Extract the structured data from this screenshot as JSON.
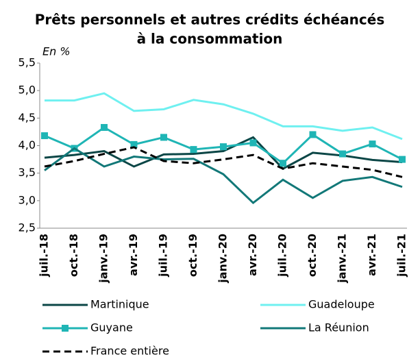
{
  "chart_data": {
    "type": "line",
    "title": [
      "Prêts personnels et autres crédits échéancés",
      "à la consommation"
    ],
    "y_label": "En %",
    "categories": [
      "juil.-18",
      "oct.-18",
      "janv.-19",
      "avr.-19",
      "juil.-19",
      "oct.-19",
      "janv.-20",
      "avr.-20",
      "juil.-20",
      "oct.-20",
      "janv.-21",
      "avr.-21",
      "juil.-21"
    ],
    "series": [
      {
        "name": "Martinique",
        "color": "#0b4646",
        "dash": false,
        "marker": null,
        "values": [
          3.78,
          3.83,
          3.9,
          3.62,
          3.84,
          3.85,
          3.9,
          4.15,
          3.58,
          3.87,
          3.82,
          3.74,
          3.7
        ]
      },
      {
        "name": "Guadeloupe",
        "color": "#6ff0f0",
        "dash": false,
        "marker": null,
        "values": [
          4.82,
          4.82,
          4.95,
          4.63,
          4.66,
          4.83,
          4.75,
          4.58,
          4.35,
          4.35,
          4.27,
          4.33,
          4.12
        ]
      },
      {
        "name": "Guyane",
        "color": "#1fb5b5",
        "dash": false,
        "marker": "square",
        "values": [
          4.18,
          3.95,
          4.33,
          4.02,
          4.15,
          3.93,
          3.98,
          4.05,
          3.68,
          4.2,
          3.85,
          4.03,
          3.75
        ]
      },
      {
        "name": "La Réunion",
        "color": "#127878",
        "dash": false,
        "marker": null,
        "values": [
          3.55,
          3.95,
          3.62,
          3.8,
          3.75,
          3.76,
          3.48,
          2.96,
          3.38,
          3.05,
          3.36,
          3.43,
          3.25
        ]
      },
      {
        "name": "France entière",
        "color": "#000000",
        "dash": true,
        "marker": null,
        "values": [
          3.62,
          3.72,
          3.85,
          3.97,
          3.72,
          3.68,
          3.75,
          3.83,
          3.58,
          3.68,
          3.62,
          3.56,
          3.43
        ]
      }
    ],
    "ylim": [
      2.5,
      5.5
    ],
    "yticks": [
      {
        "value": 2.5,
        "label": "2,5"
      },
      {
        "value": 3.0,
        "label": "3,0"
      },
      {
        "value": 3.5,
        "label": "3,5"
      },
      {
        "value": 4.0,
        "label": "4,0"
      },
      {
        "value": 4.5,
        "label": "4,5"
      },
      {
        "value": 5.0,
        "label": "5,0"
      },
      {
        "value": 5.5,
        "label": "5,5"
      }
    ],
    "grid": false
  }
}
